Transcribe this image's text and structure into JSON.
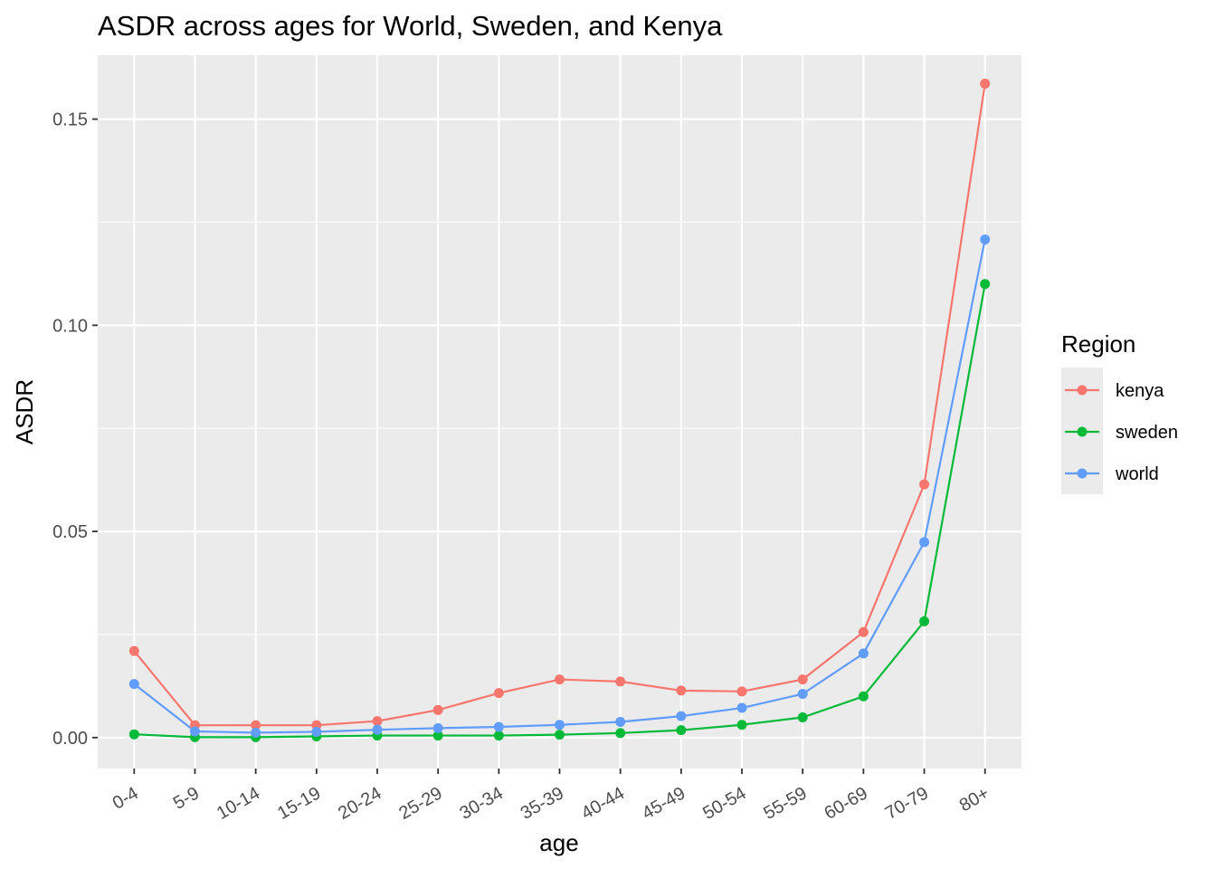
{
  "chart_data": {
    "type": "line",
    "title": "ASDR across ages for World, Sweden, and Kenya",
    "xlabel": "age",
    "ylabel": "ASDR",
    "categories": [
      "0-4",
      "5-9",
      "10-14",
      "15-19",
      "20-24",
      "25-29",
      "30-34",
      "35-39",
      "40-44",
      "45-49",
      "50-54",
      "55-59",
      "60-69",
      "70-79",
      "80+"
    ],
    "ylim": [
      -0.0075,
      0.1655
    ],
    "yticks": [
      0.0,
      0.05,
      0.1,
      0.15
    ],
    "ytick_labels": [
      "0.00",
      "0.05",
      "0.10",
      "0.15"
    ],
    "grid": true,
    "legend": {
      "title": "Region",
      "position": "right"
    },
    "series": [
      {
        "name": "kenya",
        "color": "#F8766D",
        "values": [
          0.021,
          0.003,
          0.003,
          0.003,
          0.004,
          0.0067,
          0.0108,
          0.0141,
          0.0136,
          0.0114,
          0.0112,
          0.0141,
          0.0256,
          0.0614,
          0.1586
        ]
      },
      {
        "name": "sweden",
        "color": "#00BA38",
        "values": [
          0.0008,
          0.0001,
          0.0001,
          0.0003,
          0.0005,
          0.0005,
          0.0005,
          0.0007,
          0.0011,
          0.0018,
          0.0031,
          0.0049,
          0.01,
          0.0282,
          0.11
        ]
      },
      {
        "name": "world",
        "color": "#619CFF",
        "values": [
          0.013,
          0.0015,
          0.0012,
          0.0014,
          0.0019,
          0.0023,
          0.0026,
          0.0031,
          0.0038,
          0.0052,
          0.0072,
          0.0106,
          0.0204,
          0.0474,
          0.1208
        ]
      }
    ]
  }
}
